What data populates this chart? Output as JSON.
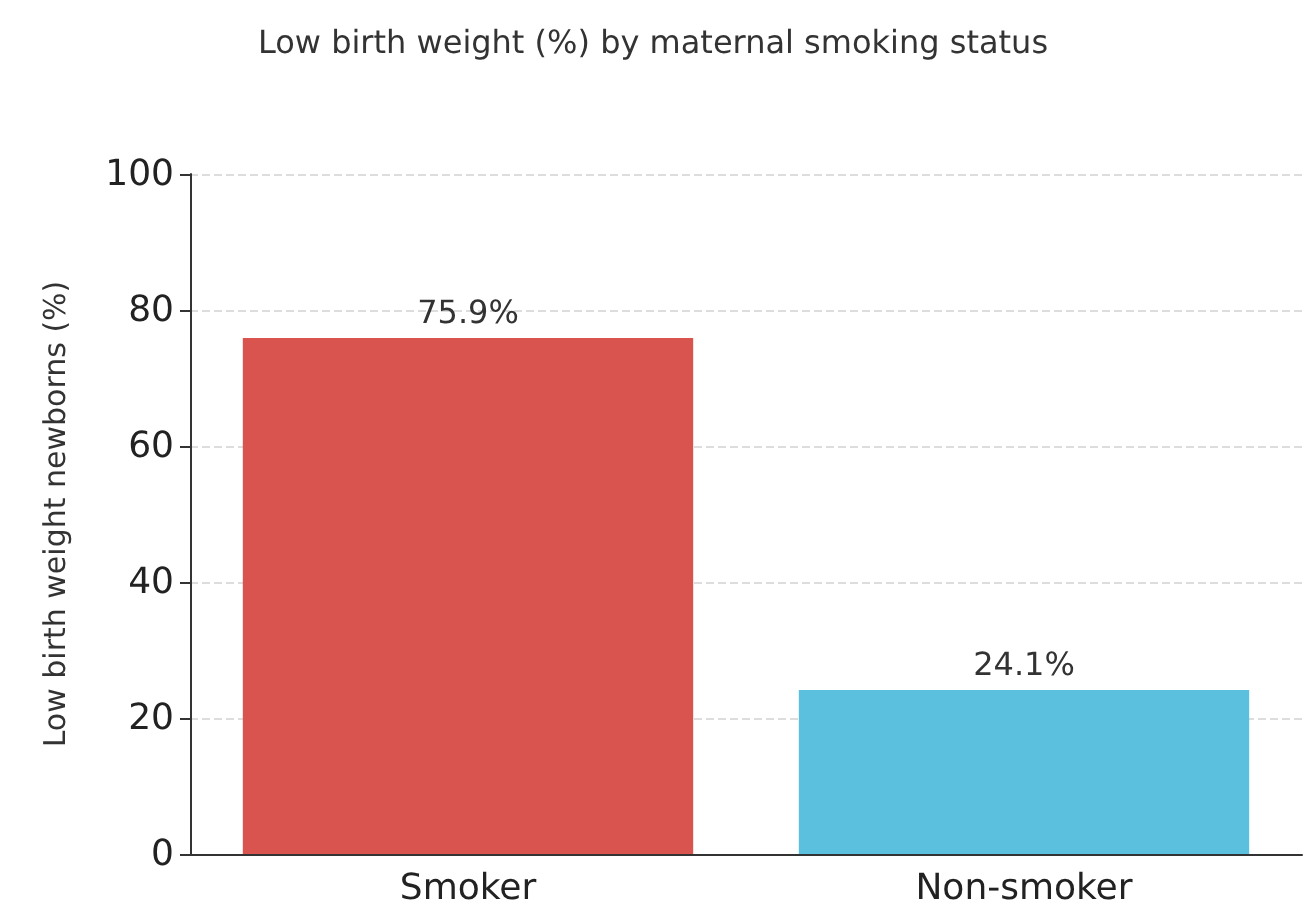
{
  "chart_data": {
    "type": "bar",
    "title": "Low birth weight (%) by maternal smoking status",
    "ylabel": "Low birth weight newborns (%)",
    "categories": [
      "Smoker",
      "Non-smoker"
    ],
    "values": [
      75.9,
      24.1
    ],
    "colors": [
      "#d9534f",
      "#5bc0de"
    ],
    "value_labels": [
      "75.9%",
      "24.1%"
    ],
    "ylim": [
      0,
      100
    ],
    "yticks": [
      0,
      20,
      40,
      60,
      80,
      100
    ],
    "grid": "y"
  }
}
